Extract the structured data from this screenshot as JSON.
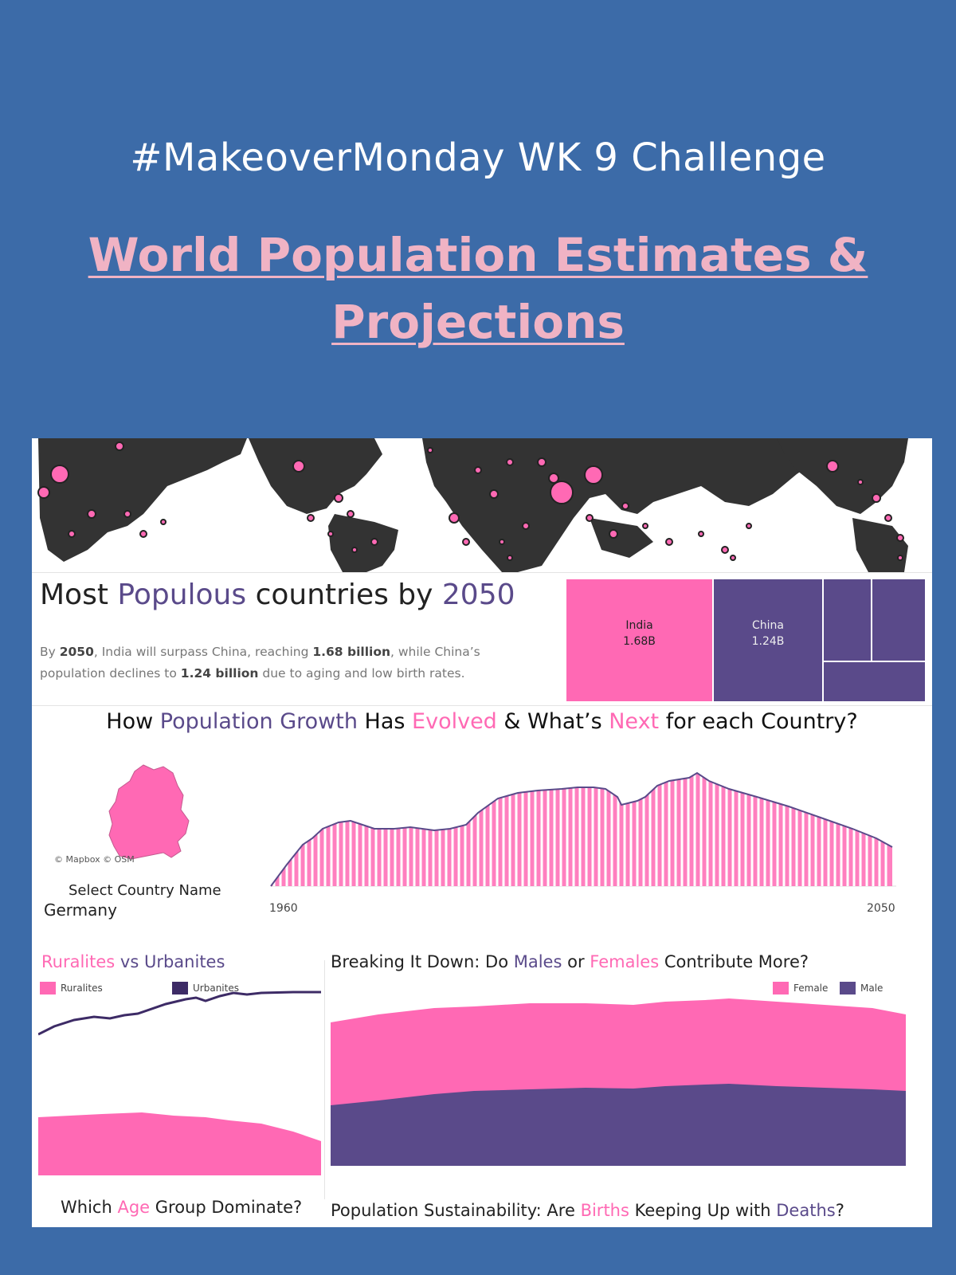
{
  "header": {
    "challenge_title": "#MakeoverMonday WK 9 Challenge",
    "viz_title": "World Population Estimates & Projections"
  },
  "colors": {
    "background": "#3c6ba8",
    "pink": "#ff69b4",
    "purple": "#5a4a8a",
    "dark_purple": "#3d2b66",
    "title_pink": "#f0b3c4"
  },
  "populous": {
    "title_part1": "Most ",
    "title_highlight1": "Populous",
    "title_part2": " countries by ",
    "title_highlight2": "2050",
    "desc_1": "By ",
    "desc_year": "2050",
    "desc_2": ", India will surpass China, reaching ",
    "desc_india": "1.68 billion",
    "desc_3": ", while China’s population declines to ",
    "desc_china": "1.24 billion",
    "desc_4": " due to aging and low birth rates."
  },
  "treemap": {
    "india_name": "India",
    "india_value": "1.68B",
    "china_name": "China",
    "china_value": "1.24B"
  },
  "growth": {
    "title_1": "How ",
    "title_pop": "Population Growth",
    "title_2": " Has ",
    "title_evolved": "Evolved",
    "title_3": " & What’s ",
    "title_next": "Next",
    "title_4": " for each Country?",
    "map_credit": "© Mapbox © OSM",
    "select_label": "Select Country Name",
    "selected_country": "Germany",
    "axis_start": "1960",
    "axis_end": "2050"
  },
  "rural": {
    "title_rural": "Ruralites",
    "title_vs": " vs ",
    "title_urban": "Urbanites",
    "legend_rural": "Ruralites",
    "legend_urban": "Urbanites"
  },
  "gender": {
    "title_1": "Breaking It Down: Do ",
    "title_males": "Males",
    "title_or": " or ",
    "title_females": "Females",
    "title_2": " Contribute More?",
    "legend_female": "Female",
    "legend_male": "Male"
  },
  "age": {
    "title_1": "Which ",
    "title_age": "Age",
    "title_2": " Group Dominate?"
  },
  "sustain": {
    "title_1": "Population Sustainability: Are ",
    "title_births": "Births",
    "title_2": " Keeping Up with ",
    "title_deaths": "Deaths",
    "title_3": "?"
  }
}
